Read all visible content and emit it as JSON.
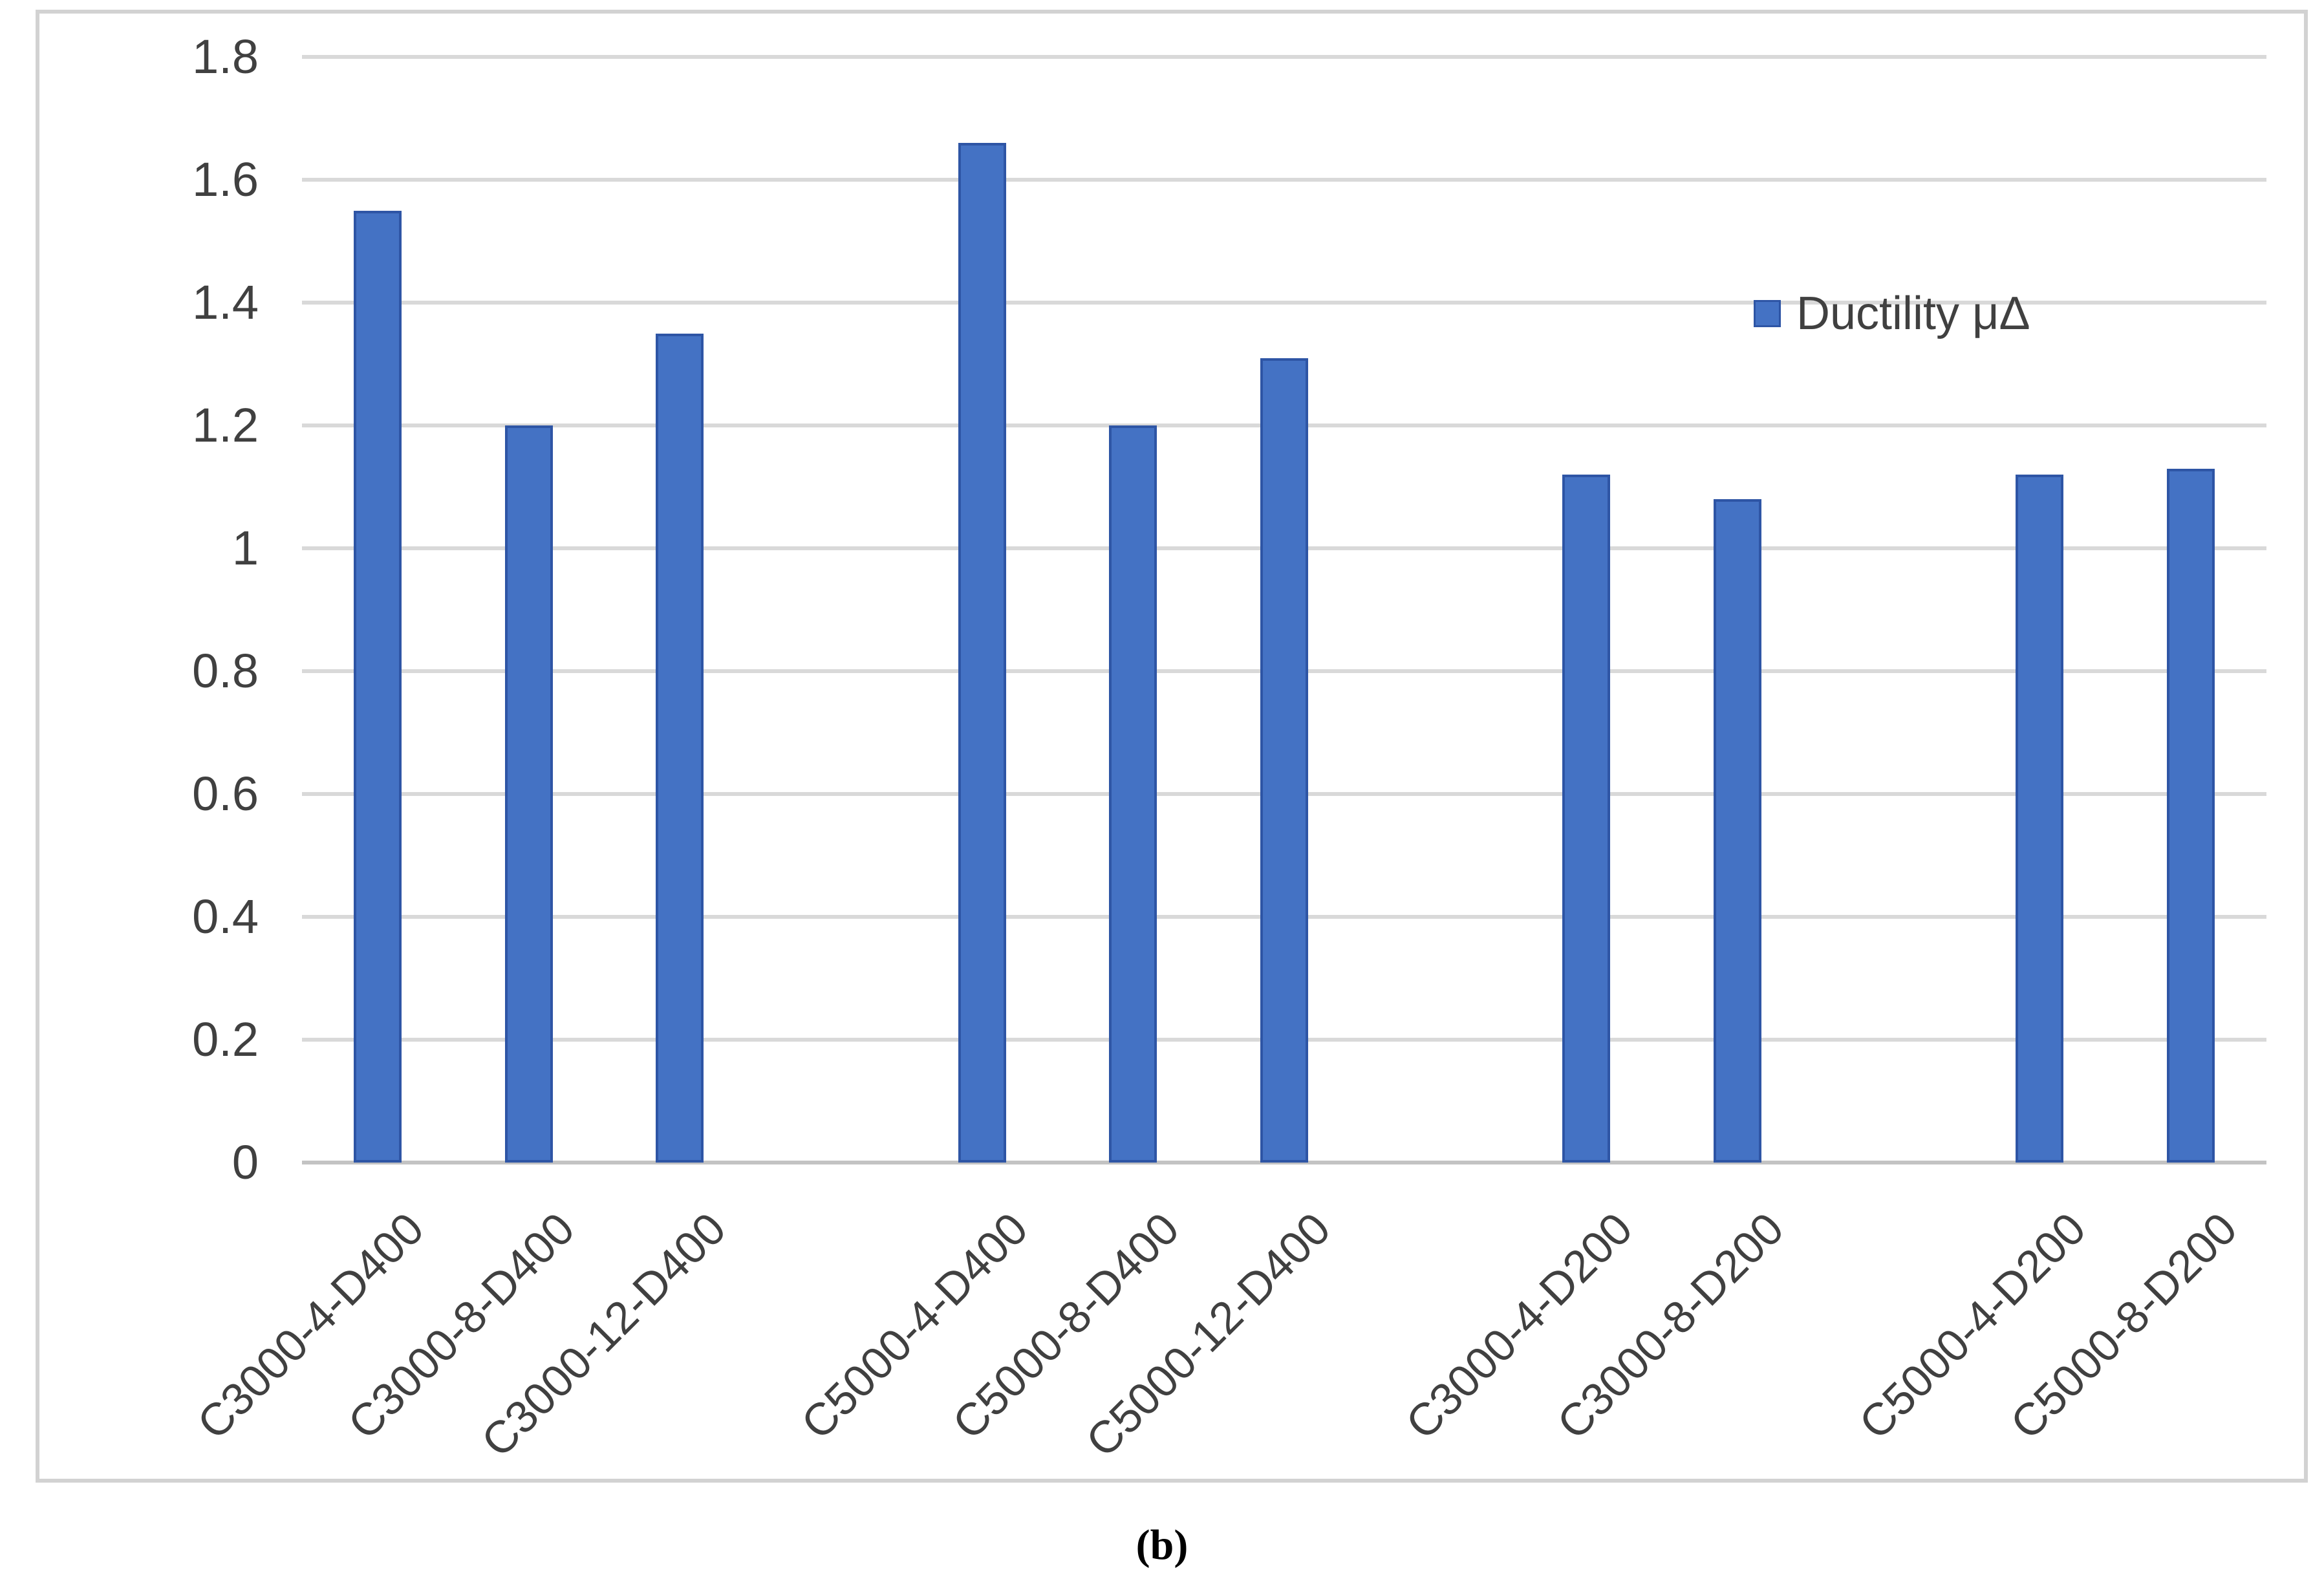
{
  "chart_data": {
    "type": "bar",
    "title": "",
    "xlabel": "",
    "ylabel": "",
    "categories": [
      "C3000-4-D400",
      "C3000-8-D400",
      "C3000-12-D400",
      "C5000-4-D400",
      "C5000-8-D400",
      "C5000-12-D400",
      "C3000-4-D200",
      "C3000-8-D200",
      "C5000-4-D200",
      "C5000-8-D200"
    ],
    "values": [
      1.55,
      1.2,
      1.35,
      1.66,
      1.2,
      1.31,
      1.12,
      1.08,
      1.12,
      1.13
    ],
    "slots": [
      0,
      1,
      2,
      4,
      5,
      6,
      8,
      9,
      11,
      12
    ],
    "total_slots": 13,
    "ylim": [
      0,
      1.8
    ],
    "ytick_step": 0.2,
    "ytick_labels": [
      "0",
      "0.2",
      "0.4",
      "0.6",
      "0.8",
      "1",
      "1.2",
      "1.4",
      "1.6",
      "1.8"
    ],
    "grid": true,
    "legend": "Ductility μΔ",
    "legend_position": "upper-right",
    "bar_color": "#4472c4",
    "bar_border_color": "#2e55a5",
    "gridline_color": "#d9d9d9",
    "axis_line_color": "#c3c3c3",
    "label_color": "#404040",
    "caption": "(b)"
  }
}
